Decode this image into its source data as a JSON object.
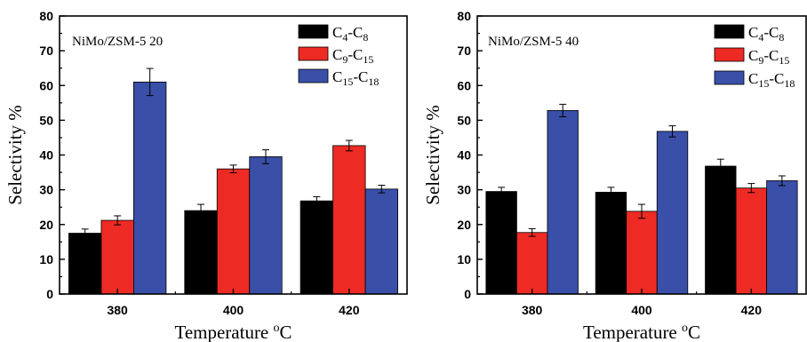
{
  "colors": {
    "C4-C8": "#000000",
    "C9-C15": "#ee2a24",
    "C15-C18": "#3a4fa8"
  },
  "chart_data": [
    {
      "type": "bar",
      "panel_label": "NiMo/ZSM-5 20",
      "ylabel": "Selectivity %",
      "xlabel": "Temperature",
      "xlabel_unit": {
        "sup": "o",
        "base": "C"
      },
      "categories": [
        "380",
        "400",
        "420"
      ],
      "ylim": [
        0,
        80
      ],
      "yticks": [
        0,
        10,
        20,
        30,
        40,
        50,
        60,
        70,
        80
      ],
      "legend_position": "top-right",
      "series": [
        {
          "key": "C4-C8",
          "label": {
            "a": "C",
            "a_sub": "4",
            "dash": "-",
            "b": "C",
            "b_sub": "8"
          },
          "values": [
            17.5,
            24,
            26.8
          ],
          "errors": [
            1.2,
            1.8,
            1.2
          ]
        },
        {
          "key": "C9-C15",
          "label": {
            "a": "C",
            "a_sub": "9",
            "dash": "-",
            "b": "C",
            "b_sub": "15"
          },
          "values": [
            21.2,
            36,
            42.7
          ],
          "errors": [
            1.3,
            1.1,
            1.5
          ]
        },
        {
          "key": "C15-C18",
          "label": {
            "a": "C",
            "a_sub": "15",
            "dash": "-",
            "b": "C",
            "b_sub": "18"
          },
          "values": [
            61,
            39.5,
            30.2
          ],
          "errors": [
            3.9,
            2,
            1.1
          ]
        }
      ]
    },
    {
      "type": "bar",
      "panel_label": "NiMo/ZSM-5 40",
      "ylabel": "Selectivity %",
      "xlabel": "Temperature",
      "xlabel_unit": {
        "sup": "o",
        "base": "C"
      },
      "categories": [
        "380",
        "400",
        "420"
      ],
      "ylim": [
        0,
        80
      ],
      "yticks": [
        0,
        10,
        20,
        30,
        40,
        50,
        60,
        70,
        80
      ],
      "legend_position": "top-right",
      "series": [
        {
          "key": "C4-C8",
          "label": {
            "a": "C",
            "a_sub": "4",
            "dash": "-",
            "b": "C",
            "b_sub": "8"
          },
          "values": [
            29.5,
            29.3,
            36.8
          ],
          "errors": [
            1.2,
            1.4,
            2
          ]
        },
        {
          "key": "C9-C15",
          "label": {
            "a": "C",
            "a_sub": "9",
            "dash": "-",
            "b": "C",
            "b_sub": "15"
          },
          "values": [
            17.7,
            23.8,
            30.5
          ],
          "errors": [
            1.1,
            2,
            1.3
          ]
        },
        {
          "key": "C15-C18",
          "label": {
            "a": "C",
            "a_sub": "15",
            "dash": "-",
            "b": "C",
            "b_sub": "18"
          },
          "values": [
            52.8,
            46.8,
            32.6
          ],
          "errors": [
            1.8,
            1.6,
            1.4
          ]
        }
      ]
    }
  ]
}
